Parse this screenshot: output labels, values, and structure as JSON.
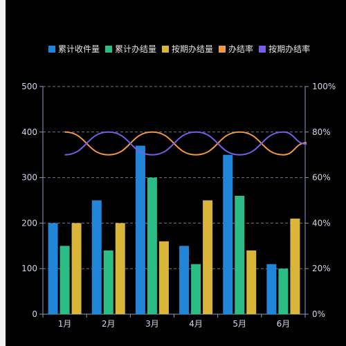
{
  "chart_data": {
    "type": "bar",
    "categories": [
      "1月",
      "2月",
      "3月",
      "4月",
      "5月",
      "6月"
    ],
    "series": [
      {
        "name": "累计收件量",
        "type": "bar",
        "color": "#2185d9",
        "values": [
          200,
          250,
          370,
          150,
          350,
          110
        ]
      },
      {
        "name": "累计办结量",
        "type": "bar",
        "color": "#2bbd84",
        "values": [
          150,
          140,
          300,
          110,
          260,
          100
        ]
      },
      {
        "name": "按期办结量",
        "type": "bar",
        "color": "#d9b63a",
        "values": [
          200,
          200,
          160,
          250,
          140,
          210
        ]
      },
      {
        "name": "办结率",
        "type": "line",
        "color": "#f19944",
        "axis": "right",
        "values": [
          80,
          70,
          80,
          70,
          80,
          70
        ]
      },
      {
        "name": "按期办结率",
        "type": "line",
        "color": "#7b5ce6",
        "axis": "right",
        "values": [
          70,
          80,
          70,
          80,
          70,
          80
        ]
      }
    ],
    "ylim": [
      0,
      500
    ],
    "y_ticks": [
      0,
      100,
      200,
      300,
      400,
      500
    ],
    "y2lim": [
      0,
      100
    ],
    "y2_ticks": [
      "0%",
      "20%",
      "40%",
      "60%",
      "80%",
      "100%"
    ],
    "grid": true,
    "legend_position": "top"
  }
}
